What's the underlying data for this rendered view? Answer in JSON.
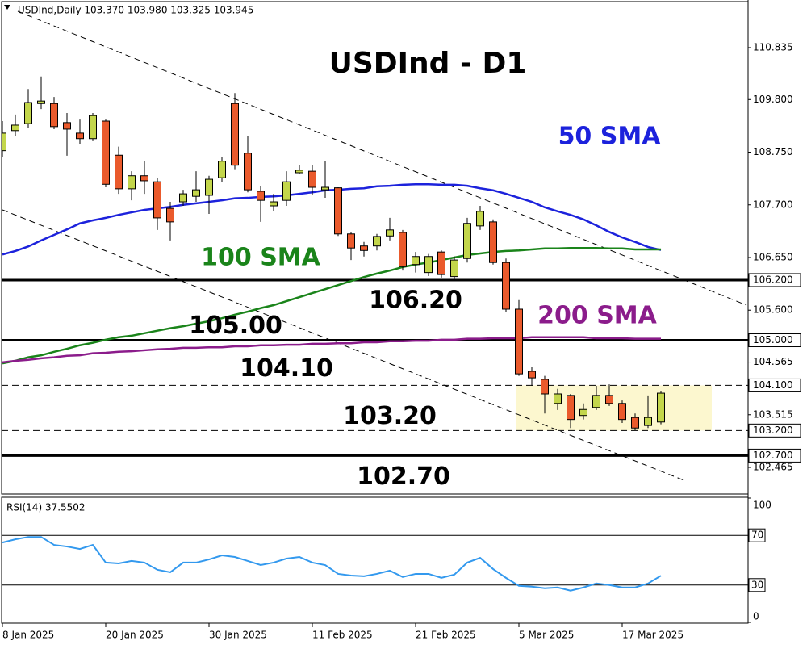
{
  "chart_data": [
    {
      "type": "candlestick",
      "title": "USDInd - D1",
      "subtitle": "USDInd,Daily 103.370 103.980 103.325 103.945",
      "categories": [
        "8 Jan 2025",
        null,
        null,
        null,
        null,
        null,
        null,
        null,
        "20 Jan 2025",
        null,
        null,
        null,
        null,
        null,
        null,
        null,
        "30 Jan 2025",
        null,
        null,
        null,
        null,
        null,
        null,
        null,
        "11 Feb 2025",
        null,
        null,
        null,
        null,
        null,
        null,
        null,
        "21 Feb 2025",
        null,
        null,
        null,
        null,
        null,
        null,
        null,
        "5 Mar 2025",
        null,
        null,
        null,
        null,
        null,
        null,
        null,
        "17 Mar 2025",
        null,
        null,
        null
      ],
      "open": [
        108.78,
        109.18,
        109.32,
        109.72,
        109.72,
        109.34,
        109.13,
        109.02,
        109.37,
        108.69,
        108.02,
        108.28,
        108.16,
        107.63,
        107.76,
        107.87,
        107.89,
        108.24,
        109.72,
        108.73,
        107.97,
        107.68,
        107.79,
        108.34,
        108.37,
        108.0,
        108.04,
        107.12,
        106.88,
        106.88,
        107.08,
        107.15,
        106.51,
        106.35,
        106.76,
        106.27,
        106.63,
        107.28,
        107.36,
        106.55,
        105.62,
        104.38,
        104.22,
        103.74,
        103.9,
        103.5,
        103.66,
        103.9,
        103.74,
        103.46,
        103.3,
        103.37
      ],
      "high": [
        109.37,
        109.5,
        110.01,
        110.26,
        109.85,
        109.53,
        109.4,
        109.53,
        109.4,
        108.86,
        108.37,
        108.57,
        108.24,
        107.76,
        108.0,
        108.37,
        108.28,
        108.65,
        109.93,
        109.08,
        108.08,
        107.92,
        108.37,
        108.49,
        108.49,
        108.57,
        108.05,
        107.15,
        106.96,
        107.12,
        107.44,
        107.2,
        106.76,
        106.72,
        106.79,
        106.67,
        107.44,
        107.68,
        107.41,
        106.63,
        105.8,
        104.46,
        104.29,
        104.03,
        103.93,
        103.74,
        104.09,
        104.12,
        103.8,
        103.54,
        103.9,
        103.98
      ],
      "low": [
        108.65,
        109.08,
        109.24,
        109.61,
        109.21,
        108.68,
        108.92,
        108.97,
        108.05,
        107.92,
        107.79,
        107.92,
        107.2,
        106.99,
        107.68,
        107.76,
        107.52,
        108.16,
        108.41,
        107.95,
        107.36,
        107.57,
        107.68,
        108.32,
        107.89,
        107.84,
        107.08,
        106.6,
        106.67,
        106.79,
        106.99,
        106.39,
        106.35,
        106.28,
        106.25,
        106.22,
        106.55,
        107.2,
        106.51,
        105.57,
        104.29,
        104.09,
        103.54,
        103.61,
        103.25,
        103.42,
        103.61,
        103.69,
        103.35,
        103.2,
        103.25,
        103.325
      ],
      "close": [
        109.13,
        109.29,
        109.74,
        109.77,
        109.26,
        109.21,
        109.02,
        109.48,
        108.11,
        108.02,
        108.28,
        108.18,
        107.44,
        107.36,
        107.92,
        108.0,
        108.21,
        108.57,
        108.49,
        108.0,
        107.79,
        107.76,
        108.16,
        108.39,
        108.05,
        108.05,
        107.12,
        106.84,
        106.79,
        107.07,
        107.2,
        106.47,
        106.67,
        106.67,
        106.31,
        106.6,
        107.33,
        107.57,
        106.55,
        105.62,
        104.33,
        104.25,
        103.93,
        103.93,
        103.42,
        103.62,
        103.9,
        103.74,
        103.42,
        103.25,
        103.46,
        103.945
      ],
      "up_color": "#c3d64b",
      "down_color": "#ea5a2c",
      "series": [
        {
          "name": "50 SMA",
          "color": "#1c22dc",
          "values": [
            106.71,
            106.78,
            106.87,
            106.99,
            107.1,
            107.21,
            107.33,
            107.39,
            107.44,
            107.5,
            107.55,
            107.6,
            107.63,
            107.66,
            107.7,
            107.73,
            107.76,
            107.79,
            107.83,
            107.84,
            107.86,
            107.87,
            107.89,
            107.92,
            107.95,
            107.99,
            108.0,
            108.02,
            108.03,
            108.07,
            108.08,
            108.1,
            108.11,
            108.11,
            108.1,
            108.1,
            108.08,
            108.03,
            107.99,
            107.92,
            107.84,
            107.76,
            107.65,
            107.57,
            107.5,
            107.41,
            107.29,
            107.16,
            107.05,
            106.96,
            106.86,
            106.8
          ]
        },
        {
          "name": "100 SMA",
          "color": "#1a841a",
          "values": [
            104.54,
            104.59,
            104.66,
            104.7,
            104.77,
            104.83,
            104.9,
            104.95,
            105.01,
            105.06,
            105.09,
            105.14,
            105.19,
            105.24,
            105.28,
            105.33,
            105.38,
            105.44,
            105.51,
            105.57,
            105.64,
            105.7,
            105.78,
            105.86,
            105.94,
            106.02,
            106.1,
            106.18,
            106.26,
            106.33,
            106.39,
            106.46,
            106.51,
            106.55,
            106.6,
            106.65,
            106.7,
            106.73,
            106.76,
            106.78,
            106.79,
            106.81,
            106.83,
            106.83,
            106.84,
            106.84,
            106.84,
            106.83,
            106.83,
            106.81,
            106.81,
            106.81
          ]
        },
        {
          "name": "200 SMA",
          "color": "#8b1c8b",
          "values": [
            104.56,
            104.59,
            104.61,
            104.64,
            104.66,
            104.69,
            104.7,
            104.74,
            104.75,
            104.77,
            104.78,
            104.8,
            104.82,
            104.83,
            104.85,
            104.85,
            104.86,
            104.86,
            104.88,
            104.88,
            104.9,
            104.9,
            104.91,
            104.91,
            104.93,
            104.93,
            104.94,
            104.94,
            104.96,
            104.96,
            104.98,
            104.98,
            104.99,
            104.99,
            105.01,
            105.01,
            105.03,
            105.03,
            105.04,
            105.04,
            105.04,
            105.06,
            105.06,
            105.06,
            105.06,
            105.06,
            105.04,
            105.04,
            105.04,
            105.03,
            105.03,
            105.03
          ]
        }
      ],
      "ylim": [
        101.934,
        111.736
      ],
      "yticks": [
        {
          "value": 110.835,
          "label": "110.835"
        },
        {
          "value": 109.8,
          "label": "109.800"
        },
        {
          "value": 108.75,
          "label": "108.750"
        },
        {
          "value": 107.7,
          "label": "107.700"
        },
        {
          "value": 106.65,
          "label": "106.650"
        },
        {
          "value": 105.6,
          "label": "105.600"
        },
        {
          "value": 104.565,
          "label": "104.565"
        },
        {
          "value": 103.515,
          "label": "103.515"
        },
        {
          "value": 102.465,
          "label": "102.465"
        }
      ],
      "levels": [
        {
          "value": 106.2,
          "label": "106.200",
          "style": "solid"
        },
        {
          "value": 105,
          "label": "105.000",
          "style": "solid"
        },
        {
          "value": 104.1,
          "label": "104.100",
          "style": "dashed"
        },
        {
          "value": 103.2,
          "label": "103.200",
          "style": "dashed"
        },
        {
          "value": 102.7,
          "label": "102.700",
          "style": "solid"
        }
      ],
      "annotations": [
        {
          "value": 106.2,
          "label": "106.20"
        },
        {
          "value": 105,
          "label": "105.00"
        },
        {
          "value": 104.1,
          "label": "104.10"
        },
        {
          "value": 103.2,
          "label": "103.20"
        },
        {
          "value": 102.7,
          "label": "102.70"
        }
      ],
      "highlight_color": "#fcf7cf"
    },
    {
      "type": "line",
      "title": "RSI(14) 37.5502",
      "series": [
        {
          "color": "#3399ee",
          "values": [
            64.2,
            66.8,
            68.7,
            68.7,
            62.3,
            61.0,
            59.0,
            62.3,
            48.1,
            47.4,
            49.4,
            48.1,
            42.3,
            40.3,
            48.1,
            48.1,
            50.6,
            53.9,
            52.6,
            49.4,
            46.1,
            48.1,
            51.3,
            52.6,
            48.1,
            46.1,
            39.0,
            37.7,
            37.1,
            39.0,
            41.6,
            36.5,
            39.0,
            39.0,
            35.8,
            38.4,
            48.1,
            51.9,
            42.9,
            35.8,
            29.4,
            28.7,
            27.4,
            28.1,
            25.5,
            28.1,
            31.3,
            30.0,
            28.1,
            28.1,
            31.3,
            37.5502
          ]
        }
      ],
      "ylim": [
        0,
        100
      ],
      "yticks": [
        100,
        0
      ],
      "levels": [
        70,
        30
      ]
    }
  ]
}
